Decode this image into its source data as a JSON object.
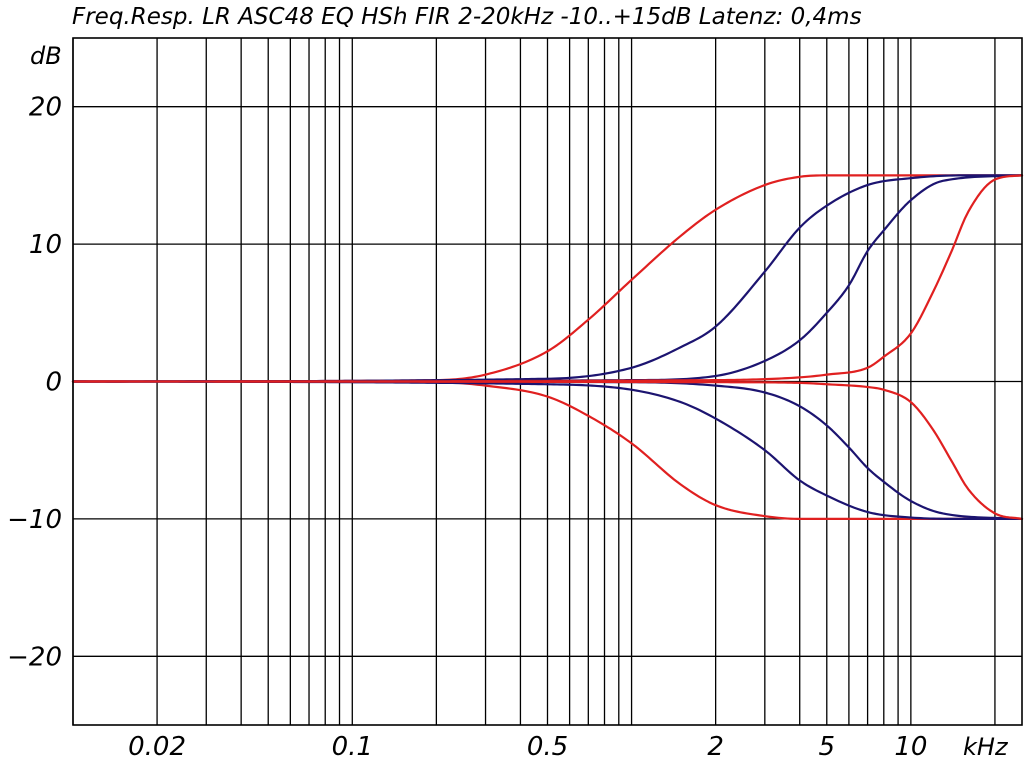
{
  "chart_data": {
    "type": "line",
    "title": "Freq.Resp.   LR ASC48  EQ  HSh  FIR  2-20kHz  -10..+15dB  Latenz: 0,4ms",
    "ylabel": "dB",
    "xlabel": "kHz",
    "x_scale": "log",
    "xlim": [
      0.01,
      25
    ],
    "ylim": [
      -25,
      25
    ],
    "grid": true,
    "x_tick_labels": [
      {
        "value": 0.02,
        "label": "0.02"
      },
      {
        "value": 0.1,
        "label": "0.1"
      },
      {
        "value": 0.5,
        "label": "0.5"
      },
      {
        "value": 2,
        "label": "2"
      },
      {
        "value": 5,
        "label": "5"
      },
      {
        "value": 10,
        "label": "10"
      }
    ],
    "y_ticks": [
      {
        "value": 20,
        "label": "20"
      },
      {
        "value": 10,
        "label": "10"
      },
      {
        "value": 0,
        "label": "0"
      },
      {
        "value": -10,
        "label": "-10"
      },
      {
        "value": -20,
        "label": "-20"
      }
    ],
    "colors": {
      "red": "#e02020",
      "blue": "#1c1470"
    },
    "series": [
      {
        "color": "red",
        "x": [
          0.01,
          0.2,
          0.3,
          0.5,
          0.7,
          1.0,
          1.5,
          2.0,
          3.0,
          4.0,
          5.0,
          7.0,
          10.0,
          20.0,
          25.0
        ],
        "y": [
          0,
          0.1,
          0.5,
          2.2,
          4.5,
          7.4,
          10.6,
          12.5,
          14.3,
          14.9,
          15.0,
          15.0,
          15.0,
          15.0,
          15.0
        ]
      },
      {
        "color": "blue",
        "x": [
          0.01,
          0.5,
          1.0,
          1.5,
          2.0,
          3.0,
          4.0,
          5.0,
          7.0,
          10.0,
          15.0,
          25.0
        ],
        "y": [
          0,
          0.2,
          1.0,
          2.5,
          4.0,
          8.0,
          11.2,
          12.8,
          14.3,
          14.8,
          15.0,
          15.0
        ]
      },
      {
        "color": "blue",
        "x": [
          0.01,
          1.0,
          2.0,
          3.0,
          4.0,
          5.0,
          6.0,
          7.0,
          8.0,
          10.0,
          13.0,
          25.0
        ],
        "y": [
          0,
          0.1,
          0.4,
          1.5,
          3.0,
          5.0,
          7.0,
          9.5,
          11.0,
          13.2,
          14.6,
          15.0
        ]
      },
      {
        "color": "red",
        "x": [
          0.01,
          2.0,
          4.0,
          5.0,
          7.0,
          8.0,
          10.0,
          12.0,
          14.0,
          16.0,
          20.0,
          25.0
        ],
        "y": [
          0,
          0.1,
          0.3,
          0.5,
          1.0,
          1.8,
          3.5,
          6.5,
          9.5,
          12.3,
          14.7,
          15.0
        ]
      },
      {
        "color": "red",
        "x": [
          0.01,
          0.2,
          0.3,
          0.5,
          0.7,
          1.0,
          1.5,
          2.0,
          3.0,
          4.0,
          5.0,
          7.0,
          10.0,
          20.0,
          25.0
        ],
        "y": [
          0,
          -0.05,
          -0.3,
          -1.1,
          -2.5,
          -4.5,
          -7.5,
          -9.0,
          -9.8,
          -10.0,
          -10.0,
          -10.0,
          -10.0,
          -10.0,
          -10.0
        ]
      },
      {
        "color": "blue",
        "x": [
          0.01,
          0.5,
          1.0,
          1.5,
          2.0,
          3.0,
          4.0,
          5.0,
          7.0,
          10.0,
          15.0,
          25.0
        ],
        "y": [
          0,
          -0.2,
          -0.6,
          -1.5,
          -2.7,
          -5.0,
          -7.2,
          -8.3,
          -9.5,
          -9.9,
          -10.0,
          -10.0
        ]
      },
      {
        "color": "blue",
        "x": [
          0.01,
          1.0,
          2.0,
          3.0,
          4.0,
          5.0,
          6.0,
          7.0,
          8.0,
          10.0,
          13.0,
          25.0
        ],
        "y": [
          0,
          -0.05,
          -0.3,
          -0.8,
          -1.8,
          -3.2,
          -4.8,
          -6.3,
          -7.3,
          -8.7,
          -9.6,
          -10.0
        ]
      },
      {
        "color": "red",
        "x": [
          0.01,
          2.0,
          4.0,
          5.0,
          7.0,
          8.0,
          10.0,
          12.0,
          14.0,
          16.0,
          20.0,
          25.0
        ],
        "y": [
          0,
          -0.05,
          -0.1,
          -0.2,
          -0.4,
          -0.6,
          -1.5,
          -3.5,
          -5.8,
          -7.8,
          -9.6,
          -10.0
        ]
      }
    ]
  }
}
